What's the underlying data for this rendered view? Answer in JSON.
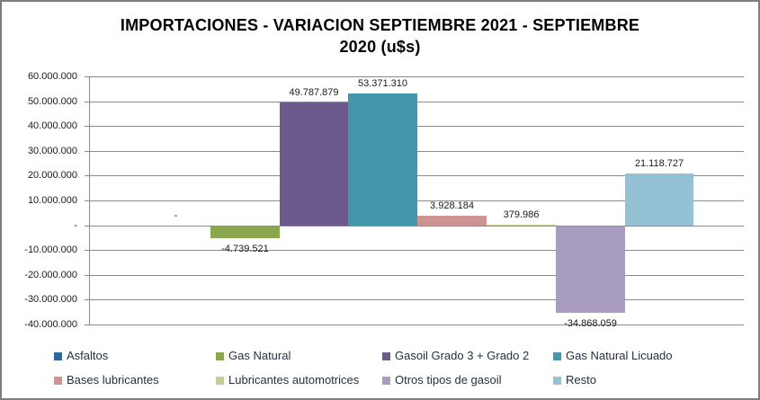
{
  "chart_data": {
    "type": "bar",
    "title": "IMPORTACIONES - VARIACION SEPTIEMBRE 2021 - SEPTIEMBRE 2020 (u$s)",
    "title_lines": [
      "IMPORTACIONES - VARIACION SEPTIEMBRE 2021 - SEPTIEMBRE",
      "2020 (u$s)"
    ],
    "xlabel": "",
    "ylabel": "",
    "ylim": [
      -40000000,
      60000000
    ],
    "grid": true,
    "legend_position": "bottom",
    "y_tick_labels": [
      "60.000.000",
      "50.000.000",
      "40.000.000",
      "30.000.000",
      "20.000.000",
      "10.000.000",
      "-",
      "-10.000.000",
      "-20.000.000",
      "-30.000.000",
      "-40.000.000"
    ],
    "series": [
      {
        "name": "Asfaltos",
        "value": 0,
        "label": "-",
        "color": "#31689b"
      },
      {
        "name": "Gas Natural",
        "value": -4739521,
        "label": "-4.739.521",
        "color": "#8aa64f"
      },
      {
        "name": "Gasoil Grado 3 + Grado 2",
        "value": 49787879,
        "label": "49.787.879",
        "color": "#6d5a8d"
      },
      {
        "name": "Gas Natural Licuado",
        "value": 53371310,
        "label": "53.371.310",
        "color": "#4396ab"
      },
      {
        "name": "Bases lubricantes",
        "value": 3928184,
        "label": "3.928.184",
        "color": "#ce9494"
      },
      {
        "name": "Lubricantes automotrices",
        "value": 379986,
        "label": "379.986",
        "color": "#c3ce9d"
      },
      {
        "name": "Otros tipos de gasoil",
        "value": -34868059,
        "label": "-34.868.059",
        "color": "#a89cbf"
      },
      {
        "name": "Resto",
        "value": 21118727,
        "label": "21.118.727",
        "color": "#93c2d4"
      }
    ],
    "colors": {
      "gridline": "#8c8c8c",
      "axis": "#8c8c8c",
      "frame_border": "#7e7e7e",
      "text": "#1a1a1a",
      "legend_text": "#22313f"
    }
  }
}
